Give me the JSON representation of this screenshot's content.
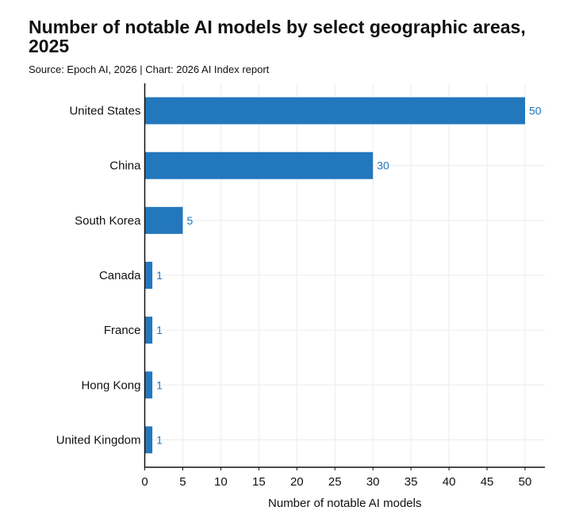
{
  "header": {
    "title": "Number of notable AI models by select geographic areas, 2025",
    "source": "Source: Epoch AI, 2026 | Chart: 2026 AI Index report"
  },
  "colors": {
    "bar": "#2377bd",
    "value_label": "#2377bd",
    "grid": "#ececec",
    "axis": "#111111"
  },
  "chart_data": {
    "type": "bar",
    "orientation": "horizontal",
    "title": "Number of notable AI models by select geographic areas, 2025",
    "subtitle": "Source: Epoch AI, 2026 | Chart: 2026 AI Index report",
    "categories": [
      "United States",
      "China",
      "South Korea",
      "Canada",
      "France",
      "Hong Kong",
      "United Kingdom"
    ],
    "values": [
      50,
      30,
      5,
      1,
      1,
      1,
      1
    ],
    "xlabel": "Number of notable AI models",
    "ylabel": "",
    "xlim": [
      0,
      52
    ],
    "xticks": [
      0,
      5,
      10,
      15,
      20,
      25,
      30,
      35,
      40,
      45,
      50
    ],
    "grid": true,
    "data_labels": true
  }
}
